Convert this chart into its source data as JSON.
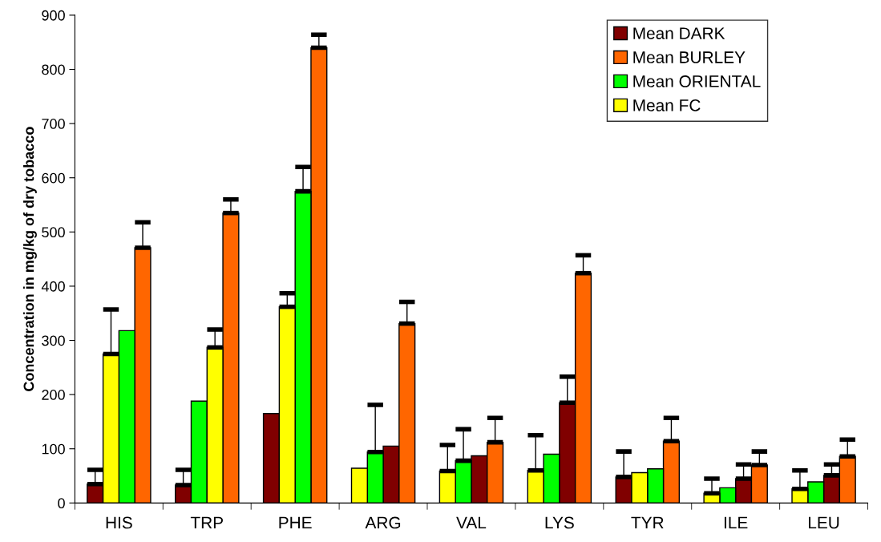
{
  "chart_data": {
    "type": "bar",
    "ylabel": "Concentration in mg/kg of dry tobacco",
    "categories": [
      "HIS",
      "TRP",
      "PHE",
      "ARG",
      "VAL",
      "LYS",
      "TYR",
      "ILE",
      "LEU"
    ],
    "series": [
      {
        "name": "Mean DARK",
        "color": "#800000",
        "values": [
          35,
          33,
          165,
          105,
          87,
          185,
          48,
          45,
          51
        ],
        "errors": [
          [
            35,
            61
          ],
          [
            33,
            61
          ],
          null,
          null,
          null,
          [
            185,
            233
          ],
          [
            48,
            95
          ],
          [
            45,
            71
          ],
          [
            51,
            71
          ]
        ]
      },
      {
        "name": "Mean BURLEY",
        "color": "#ff6600",
        "values": [
          471,
          535,
          840,
          331,
          112,
          424,
          114,
          70,
          86
        ],
        "errors": [
          [
            471,
            518
          ],
          [
            535,
            560
          ],
          [
            840,
            864
          ],
          [
            331,
            371
          ],
          [
            112,
            157
          ],
          [
            424,
            457
          ],
          [
            114,
            157
          ],
          [
            70,
            95
          ],
          [
            86,
            117
          ]
        ]
      },
      {
        "name": "Mean ORIENTAL",
        "color": "#00ff00",
        "values": [
          318,
          188,
          575,
          94,
          78,
          90,
          63,
          28,
          39
        ],
        "errors": [
          null,
          null,
          [
            575,
            620
          ],
          [
            94,
            181
          ],
          [
            78,
            136
          ],
          null,
          null,
          null,
          null
        ]
      },
      {
        "name": "Mean FC",
        "color": "#ffff00",
        "values": [
          275,
          287,
          362,
          64,
          59,
          60,
          56,
          18,
          26
        ],
        "errors": [
          [
            275,
            357
          ],
          [
            287,
            320
          ],
          [
            362,
            387
          ],
          null,
          [
            59,
            107
          ],
          [
            60,
            125
          ],
          null,
          [
            18,
            45
          ],
          [
            26,
            60
          ]
        ]
      }
    ],
    "ylim": [
      0,
      900
    ],
    "yticks": [
      0,
      100,
      200,
      300,
      400,
      500,
      600,
      700,
      800,
      900
    ],
    "grid": false,
    "legend": "top right"
  }
}
